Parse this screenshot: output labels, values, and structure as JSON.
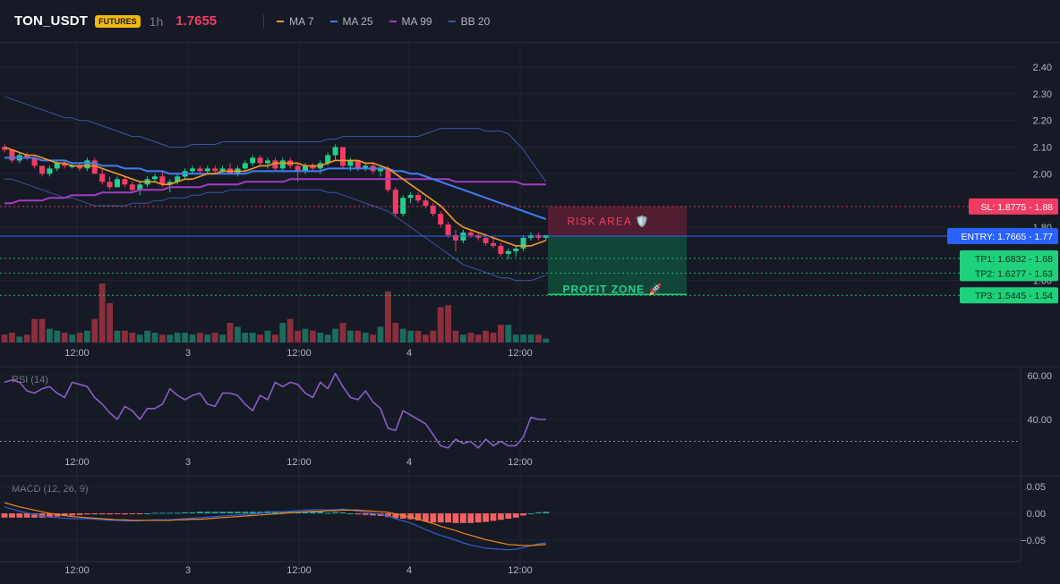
{
  "header": {
    "symbol": "TON_USDT",
    "badge": "FUTURES",
    "timeframe": "1h",
    "price": "1.7655",
    "price_color": "#f23c64",
    "legend": [
      {
        "name": "MA 7",
        "color": "#f59a23"
      },
      {
        "name": "MA 25",
        "color": "#3f7ef5"
      },
      {
        "name": "MA 99",
        "color": "#a43bc4"
      },
      {
        "name": "BB 20",
        "color": "#3a55a8"
      }
    ]
  },
  "colors": {
    "up": "#22d18b",
    "down": "#f23c64",
    "vol_up": "#1d6b5c",
    "vol_down": "#8a2e3e",
    "rsi": "#8a5cc9",
    "macd": "#2f5fd6",
    "signal": "#f0851f",
    "hist_up": "#26a69a",
    "hist_down": "#f06262",
    "sl": "#f23c64",
    "entry": "#2962ff",
    "tp": "#1fd17a"
  },
  "chart_data": [
    {
      "type": "candlestick",
      "title": "",
      "y_ticks": [
        "2.40",
        "2.30",
        "2.20",
        "2.10",
        "2.00",
        "1.80",
        "1.60"
      ],
      "x_ticks": [
        "12:00",
        "3",
        "12:00",
        "4",
        "12:00"
      ],
      "ylim": [
        1.54,
        2.46
      ],
      "candles": [
        [
          2.1,
          2.11,
          2.08,
          2.09
        ],
        [
          2.09,
          2.09,
          2.04,
          2.05
        ],
        [
          2.05,
          2.08,
          2.04,
          2.07
        ],
        [
          2.07,
          2.08,
          2.05,
          2.06
        ],
        [
          2.06,
          2.07,
          2.02,
          2.03
        ],
        [
          2.03,
          2.03,
          1.99,
          2.0
        ],
        [
          2.0,
          2.03,
          1.99,
          2.02
        ],
        [
          2.02,
          2.05,
          2.01,
          2.04
        ],
        [
          2.04,
          2.05,
          2.02,
          2.03
        ],
        [
          2.03,
          2.04,
          2.02,
          2.03
        ],
        [
          2.03,
          2.04,
          2.01,
          2.02
        ],
        [
          2.02,
          2.06,
          2.01,
          2.05
        ],
        [
          2.05,
          2.06,
          2.0,
          2.0
        ],
        [
          2.0,
          2.02,
          1.96,
          1.97
        ],
        [
          1.97,
          1.99,
          1.94,
          1.95
        ],
        [
          1.95,
          1.99,
          1.95,
          1.98
        ],
        [
          1.98,
          1.99,
          1.95,
          1.96
        ],
        [
          1.96,
          1.97,
          1.93,
          1.94
        ],
        [
          1.94,
          1.97,
          1.92,
          1.96
        ],
        [
          1.96,
          1.99,
          1.95,
          1.98
        ],
        [
          1.98,
          2.0,
          1.97,
          1.99
        ],
        [
          1.99,
          2.01,
          1.95,
          1.96
        ],
        [
          1.96,
          1.98,
          1.93,
          1.97
        ],
        [
          1.97,
          2.0,
          1.96,
          1.99
        ],
        [
          1.99,
          2.02,
          1.98,
          2.01
        ],
        [
          2.01,
          2.03,
          2.0,
          2.02
        ],
        [
          2.02,
          2.03,
          2.0,
          2.01
        ],
        [
          2.01,
          2.03,
          2.0,
          2.02
        ],
        [
          2.02,
          2.03,
          2.0,
          2.01
        ],
        [
          2.01,
          2.03,
          2.0,
          2.02
        ],
        [
          2.02,
          2.04,
          2.0,
          2.0
        ],
        [
          2.0,
          2.03,
          1.99,
          2.02
        ],
        [
          2.02,
          2.05,
          2.01,
          2.04
        ],
        [
          2.04,
          2.07,
          2.03,
          2.06
        ],
        [
          2.06,
          2.07,
          2.03,
          2.04
        ],
        [
          2.04,
          2.06,
          2.02,
          2.05
        ],
        [
          2.05,
          2.06,
          2.01,
          2.02
        ],
        [
          2.02,
          2.06,
          2.01,
          2.05
        ],
        [
          2.05,
          2.06,
          2.02,
          2.03
        ],
        [
          2.03,
          2.04,
          1.97,
          2.01
        ],
        [
          2.01,
          2.04,
          2.0,
          2.03
        ],
        [
          2.03,
          2.04,
          2.01,
          2.02
        ],
        [
          2.02,
          2.05,
          2.0,
          2.04
        ],
        [
          2.04,
          2.08,
          2.03,
          2.07
        ],
        [
          2.07,
          2.11,
          2.05,
          2.1
        ],
        [
          2.1,
          2.1,
          2.02,
          2.03
        ],
        [
          2.03,
          2.06,
          2.01,
          2.05
        ],
        [
          2.05,
          2.05,
          2.01,
          2.02
        ],
        [
          2.02,
          2.04,
          2.01,
          2.03
        ],
        [
          2.03,
          2.04,
          2.0,
          2.01
        ],
        [
          2.01,
          2.03,
          1.99,
          2.02
        ],
        [
          2.02,
          2.03,
          1.93,
          1.94
        ],
        [
          1.94,
          1.95,
          1.84,
          1.85
        ],
        [
          1.85,
          1.92,
          1.84,
          1.91
        ],
        [
          1.91,
          1.93,
          1.89,
          1.92
        ],
        [
          1.92,
          1.93,
          1.89,
          1.9
        ],
        [
          1.9,
          1.91,
          1.87,
          1.88
        ],
        [
          1.88,
          1.89,
          1.84,
          1.85
        ],
        [
          1.85,
          1.86,
          1.8,
          1.81
        ],
        [
          1.81,
          1.82,
          1.76,
          1.77
        ],
        [
          1.77,
          1.79,
          1.71,
          1.75
        ],
        [
          1.75,
          1.79,
          1.74,
          1.78
        ],
        [
          1.78,
          1.79,
          1.76,
          1.77
        ],
        [
          1.77,
          1.78,
          1.75,
          1.76
        ],
        [
          1.76,
          1.77,
          1.73,
          1.74
        ],
        [
          1.74,
          1.76,
          1.72,
          1.73
        ],
        [
          1.73,
          1.74,
          1.69,
          1.7
        ],
        [
          1.7,
          1.72,
          1.68,
          1.71
        ],
        [
          1.71,
          1.73,
          1.69,
          1.72
        ],
        [
          1.72,
          1.77,
          1.71,
          1.76
        ],
        [
          1.76,
          1.78,
          1.75,
          1.77
        ],
        [
          1.77,
          1.78,
          1.75,
          1.76
        ],
        [
          1.76,
          1.77,
          1.75,
          1.77
        ]
      ],
      "ma7": [
        2.1,
        2.09,
        2.08,
        2.07,
        2.07,
        2.06,
        2.05,
        2.04,
        2.04,
        2.03,
        2.03,
        2.03,
        2.03,
        2.02,
        2.01,
        2.0,
        1.99,
        1.98,
        1.97,
        1.97,
        1.97,
        1.96,
        1.96,
        1.97,
        1.98,
        1.98,
        1.99,
        2.0,
        2.0,
        2.01,
        2.01,
        2.01,
        2.01,
        2.02,
        2.03,
        2.03,
        2.04,
        2.04,
        2.04,
        2.04,
        2.03,
        2.03,
        2.03,
        2.04,
        2.05,
        2.05,
        2.05,
        2.05,
        2.04,
        2.04,
        2.03,
        2.02,
        2.0,
        1.98,
        1.96,
        1.94,
        1.92,
        1.9,
        1.88,
        1.85,
        1.82,
        1.8,
        1.79,
        1.78,
        1.77,
        1.76,
        1.75,
        1.74,
        1.73,
        1.73,
        1.73,
        1.74,
        1.75
      ],
      "ma25": [
        2.06,
        2.06,
        2.06,
        2.06,
        2.06,
        2.05,
        2.05,
        2.05,
        2.05,
        2.04,
        2.04,
        2.04,
        2.04,
        2.03,
        2.03,
        2.03,
        2.02,
        2.02,
        2.02,
        2.01,
        2.01,
        2.01,
        2.0,
        2.0,
        2.0,
        2.0,
        2.0,
        2.0,
        2.0,
        2.0,
        2.0,
        2.0,
        2.0,
        2.01,
        2.01,
        2.01,
        2.01,
        2.01,
        2.01,
        2.01,
        2.01,
        2.01,
        2.01,
        2.02,
        2.02,
        2.02,
        2.02,
        2.02,
        2.02,
        2.02,
        2.02,
        2.02,
        2.01,
        2.01,
        2.0,
        2.0,
        1.99,
        1.98,
        1.97,
        1.96,
        1.95,
        1.94,
        1.93,
        1.92,
        1.91,
        1.9,
        1.89,
        1.88,
        1.87,
        1.86,
        1.85,
        1.84,
        1.83
      ],
      "ma99": [
        1.89,
        1.89,
        1.9,
        1.9,
        1.9,
        1.9,
        1.91,
        1.91,
        1.91,
        1.92,
        1.92,
        1.92,
        1.92,
        1.93,
        1.93,
        1.93,
        1.93,
        1.93,
        1.94,
        1.94,
        1.94,
        1.94,
        1.95,
        1.95,
        1.95,
        1.95,
        1.95,
        1.96,
        1.96,
        1.96,
        1.96,
        1.96,
        1.97,
        1.97,
        1.97,
        1.97,
        1.97,
        1.97,
        1.98,
        1.98,
        1.98,
        1.98,
        1.98,
        1.98,
        1.98,
        1.98,
        1.98,
        1.98,
        1.98,
        1.98,
        1.98,
        1.98,
        1.98,
        1.98,
        1.98,
        1.98,
        1.98,
        1.98,
        1.98,
        1.98,
        1.97,
        1.97,
        1.97,
        1.97,
        1.97,
        1.97,
        1.97,
        1.97,
        1.97,
        1.96,
        1.96,
        1.96,
        1.96
      ],
      "bb_upper": [
        2.29,
        2.28,
        2.27,
        2.26,
        2.25,
        2.24,
        2.23,
        2.22,
        2.21,
        2.21,
        2.2,
        2.2,
        2.19,
        2.18,
        2.17,
        2.16,
        2.15,
        2.14,
        2.14,
        2.13,
        2.12,
        2.11,
        2.1,
        2.1,
        2.1,
        2.11,
        2.11,
        2.11,
        2.11,
        2.12,
        2.12,
        2.12,
        2.12,
        2.12,
        2.12,
        2.12,
        2.12,
        2.12,
        2.12,
        2.12,
        2.12,
        2.12,
        2.12,
        2.13,
        2.13,
        2.14,
        2.14,
        2.14,
        2.14,
        2.14,
        2.14,
        2.14,
        2.14,
        2.14,
        2.14,
        2.14,
        2.15,
        2.16,
        2.17,
        2.17,
        2.17,
        2.17,
        2.17,
        2.17,
        2.16,
        2.16,
        2.16,
        2.15,
        2.12,
        2.09,
        2.05,
        2.01,
        1.97
      ],
      "bb_lower": [
        1.98,
        1.98,
        1.97,
        1.96,
        1.95,
        1.94,
        1.93,
        1.92,
        1.91,
        1.91,
        1.9,
        1.89,
        1.88,
        1.88,
        1.88,
        1.88,
        1.88,
        1.89,
        1.89,
        1.89,
        1.9,
        1.9,
        1.91,
        1.91,
        1.91,
        1.92,
        1.92,
        1.93,
        1.93,
        1.93,
        1.94,
        1.94,
        1.94,
        1.94,
        1.94,
        1.94,
        1.94,
        1.94,
        1.94,
        1.94,
        1.94,
        1.94,
        1.94,
        1.93,
        1.93,
        1.92,
        1.91,
        1.9,
        1.89,
        1.88,
        1.87,
        1.86,
        1.84,
        1.82,
        1.8,
        1.78,
        1.76,
        1.74,
        1.72,
        1.7,
        1.68,
        1.66,
        1.65,
        1.64,
        1.63,
        1.62,
        1.61,
        1.61,
        1.6,
        1.6,
        1.6,
        1.61,
        1.62
      ],
      "volume": [
        0.2,
        0.25,
        0.15,
        0.2,
        0.6,
        0.6,
        0.35,
        0.3,
        0.25,
        0.2,
        0.25,
        0.3,
        0.6,
        1.5,
        1.0,
        0.3,
        0.3,
        0.25,
        0.2,
        0.3,
        0.25,
        0.2,
        0.2,
        0.25,
        0.25,
        0.2,
        0.25,
        0.2,
        0.25,
        0.2,
        0.5,
        0.4,
        0.25,
        0.25,
        0.2,
        0.3,
        0.2,
        0.5,
        0.6,
        0.3,
        0.35,
        0.3,
        0.25,
        0.2,
        0.35,
        0.5,
        0.3,
        0.3,
        0.25,
        0.2,
        0.4,
        1.3,
        0.5,
        0.35,
        0.3,
        0.3,
        0.2,
        0.3,
        0.9,
        0.95,
        0.3,
        0.2,
        0.25,
        0.2,
        0.3,
        0.25,
        0.45,
        0.45,
        0.2,
        0.2,
        0.2,
        0.2,
        0.1
      ],
      "levels": [
        {
          "label": "SL: 1.8775",
          "price_label": "1.88",
          "value": 1.8775,
          "kind": "sl"
        },
        {
          "label": "ENTRY: 1.7665",
          "price_label": "1.77",
          "value": 1.7665,
          "kind": "entry"
        },
        {
          "label": "TP1: 1.6832",
          "price_label": "1.68",
          "value": 1.6832,
          "kind": "tp"
        },
        {
          "label": "TP2: 1.6277",
          "price_label": "1.63",
          "value": 1.6277,
          "kind": "tp"
        },
        {
          "label": "TP3: 1.5445",
          "price_label": "1.54",
          "value": 1.5445,
          "kind": "tp"
        }
      ],
      "risk_label": "RISK AREA 🛡️",
      "profit_label": "PROFIT ZONE 🚀"
    },
    {
      "type": "line",
      "title": "RSI (14)",
      "y_ticks": [
        "60.00",
        "40.00"
      ],
      "ylim": [
        25,
        67
      ],
      "x_ticks": [
        "12:00",
        "3",
        "12:00",
        "4",
        "12:00"
      ],
      "values": [
        57,
        58,
        57,
        53,
        52,
        54,
        55,
        52,
        50,
        57,
        56,
        55,
        50,
        47,
        43,
        40,
        46,
        44,
        40,
        45,
        45,
        47,
        54,
        51,
        49,
        51,
        52,
        47,
        46,
        52,
        52,
        51,
        47,
        44,
        51,
        49,
        57,
        55,
        57,
        56,
        52,
        50,
        57,
        54,
        61,
        55,
        50,
        49,
        53,
        48,
        45,
        36,
        35,
        44,
        42,
        40,
        38,
        33,
        28,
        27,
        31,
        29,
        30,
        27,
        31,
        28,
        30,
        28,
        28,
        32,
        41,
        40,
        40
      ],
      "level": 30
    },
    {
      "type": "line",
      "title": "MACD (12, 26, 9)",
      "y_ticks": [
        "0.05",
        "0.00",
        "−0.05"
      ],
      "ylim": [
        -0.078,
        0.068
      ],
      "x_ticks": [
        "12:00",
        "3",
        "12:00",
        "4",
        "12:00"
      ],
      "macd": [
        0.012,
        0.008,
        0.004,
        0.001,
        -0.002,
        -0.005,
        -0.007,
        -0.008,
        -0.009,
        -0.01,
        -0.01,
        -0.01,
        -0.011,
        -0.012,
        -0.013,
        -0.013,
        -0.014,
        -0.014,
        -0.014,
        -0.013,
        -0.012,
        -0.012,
        -0.012,
        -0.011,
        -0.01,
        -0.009,
        -0.008,
        -0.007,
        -0.006,
        -0.005,
        -0.004,
        -0.003,
        -0.002,
        -0.001,
        0.0,
        0.002,
        0.003,
        0.003,
        0.004,
        0.005,
        0.006,
        0.007,
        0.007,
        0.006,
        0.007,
        0.008,
        0.006,
        0.004,
        0.002,
        0.0,
        -0.002,
        -0.005,
        -0.01,
        -0.014,
        -0.018,
        -0.024,
        -0.03,
        -0.036,
        -0.041,
        -0.045,
        -0.05,
        -0.055,
        -0.059,
        -0.062,
        -0.065,
        -0.066,
        -0.067,
        -0.068,
        -0.067,
        -0.064,
        -0.06,
        -0.057,
        -0.055
      ],
      "signal": [
        0.02,
        0.016,
        0.012,
        0.009,
        0.006,
        0.003,
        0.0,
        -0.002,
        -0.004,
        -0.006,
        -0.007,
        -0.008,
        -0.009,
        -0.01,
        -0.011,
        -0.012,
        -0.012,
        -0.013,
        -0.013,
        -0.013,
        -0.013,
        -0.013,
        -0.013,
        -0.012,
        -0.012,
        -0.011,
        -0.011,
        -0.01,
        -0.009,
        -0.008,
        -0.007,
        -0.006,
        -0.005,
        -0.004,
        -0.003,
        -0.002,
        -0.001,
        0.0,
        0.001,
        0.002,
        0.003,
        0.004,
        0.004,
        0.005,
        0.005,
        0.006,
        0.006,
        0.006,
        0.005,
        0.004,
        0.003,
        0.002,
        -0.001,
        -0.004,
        -0.007,
        -0.011,
        -0.015,
        -0.019,
        -0.024,
        -0.028,
        -0.032,
        -0.037,
        -0.041,
        -0.045,
        -0.049,
        -0.052,
        -0.055,
        -0.058,
        -0.059,
        -0.06,
        -0.06,
        -0.059,
        -0.058
      ]
    }
  ]
}
